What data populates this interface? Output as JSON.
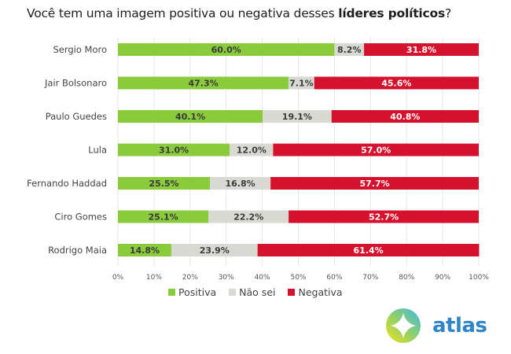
{
  "title": {
    "prefix": "Você tem uma imagem positiva ou negativa desses ",
    "bold": "líderes políticos",
    "suffix": "?"
  },
  "colors": {
    "positiva": "#8acb3c",
    "nao_sei": "#d9d9d4",
    "negativa": "#d5122d",
    "grid": "#e6e6e6",
    "label_dark": "#3a3a3a",
    "label_light": "#ffffff"
  },
  "chart_data": {
    "type": "bar",
    "orientation": "horizontal",
    "stacked": true,
    "title": "Você tem uma imagem positiva ou negativa desses líderes políticos?",
    "categories": [
      "Sergio Moro",
      "Jair Bolsonaro",
      "Paulo Guedes",
      "Lula",
      "Fernando Haddad",
      "Ciro Gomes",
      "Rodrigo Maia"
    ],
    "series": [
      {
        "name": "Positiva",
        "key": "positiva",
        "values": [
          60.0,
          47.3,
          40.1,
          31.0,
          25.5,
          25.1,
          14.8
        ]
      },
      {
        "name": "Não sei",
        "key": "nao_sei",
        "values": [
          8.2,
          7.1,
          19.1,
          12.0,
          16.8,
          22.2,
          23.9
        ]
      },
      {
        "name": "Negativa",
        "key": "negativa",
        "values": [
          31.8,
          45.6,
          40.8,
          57.0,
          57.7,
          52.7,
          61.4
        ]
      }
    ],
    "xlim": [
      0,
      100
    ],
    "xticks": [
      "0%",
      "10%",
      "20%",
      "30%",
      "40%",
      "50%",
      "60%",
      "70%",
      "80%",
      "90%",
      "100%"
    ],
    "value_suffix": "%",
    "grid": true,
    "legend": "bottom-center",
    "xlabel": "",
    "ylabel": ""
  },
  "legend": [
    {
      "label": "Positiva",
      "key": "positiva"
    },
    {
      "label": "Não sei",
      "key": "nao_sei"
    },
    {
      "label": "Negativa",
      "key": "negativa"
    }
  ],
  "logo": {
    "text": "atlas",
    "icon": "atlas-compass-logo-icon"
  }
}
